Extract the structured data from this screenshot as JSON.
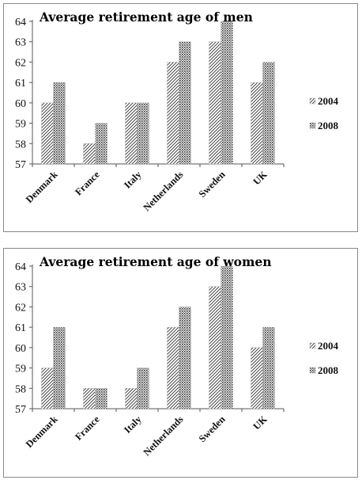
{
  "chart_data": [
    {
      "type": "bar",
      "title": "Average retirement age of men",
      "categories": [
        "Denmark",
        "France",
        "Italy",
        "Netherlands",
        "Sweden",
        "UK"
      ],
      "series": [
        {
          "name": "2004",
          "values": [
            60,
            58,
            60,
            62,
            63,
            61
          ]
        },
        {
          "name": "2008",
          "values": [
            61,
            59,
            60,
            63,
            64,
            62
          ]
        }
      ],
      "ylim": [
        57,
        64
      ],
      "yticks": [
        57,
        58,
        59,
        60,
        61,
        62,
        63,
        64
      ],
      "xlabel": "",
      "ylabel": "",
      "legend_position": "right",
      "grid": false
    },
    {
      "type": "bar",
      "title": "Average retirement age of women",
      "categories": [
        "Denmark",
        "France",
        "Italy",
        "Netherlands",
        "Sweden",
        "UK"
      ],
      "series": [
        {
          "name": "2004",
          "values": [
            59,
            58,
            58,
            61,
            63,
            60
          ]
        },
        {
          "name": "2008",
          "values": [
            61,
            58,
            59,
            62,
            64,
            61
          ]
        }
      ],
      "ylim": [
        57,
        64
      ],
      "yticks": [
        57,
        58,
        59,
        60,
        61,
        62,
        63,
        64
      ],
      "xlabel": "",
      "ylabel": "",
      "legend_position": "right",
      "grid": false
    }
  ],
  "colors": {
    "bar_fill": "#ffffff",
    "hatch": "#333333",
    "axis": "#555555"
  }
}
